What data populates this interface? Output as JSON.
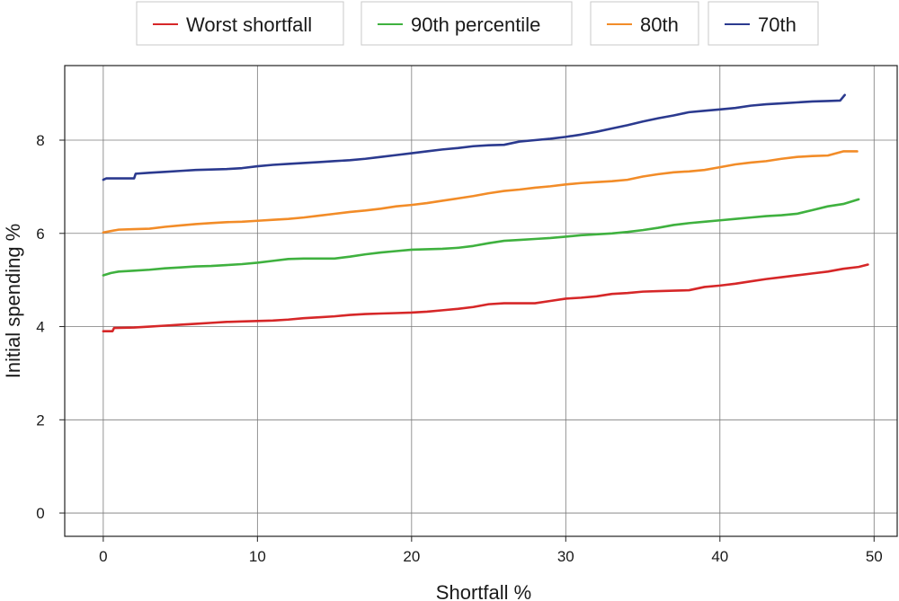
{
  "chart_data": {
    "type": "line",
    "title": "",
    "xlabel": "Shortfall %",
    "ylabel": "Initial spending %",
    "xlim": [
      -2.5,
      51.5
    ],
    "ylim": [
      -0.5,
      9.6
    ],
    "xticks": [
      0,
      10,
      20,
      30,
      40,
      50
    ],
    "yticks": [
      0,
      2,
      4,
      6,
      8
    ],
    "grid": true,
    "legend_position": "top",
    "series": [
      {
        "name": "Worst shortfall",
        "color": "#d62728",
        "x": [
          0,
          0.6,
          0.7,
          2,
          3,
          4,
          5,
          6,
          7,
          8,
          9,
          10,
          11,
          12,
          13,
          14,
          15,
          16,
          17,
          18,
          19,
          20,
          21,
          22,
          23,
          24,
          25,
          26,
          27,
          28,
          29,
          30,
          31,
          32,
          33,
          34,
          35,
          36,
          37,
          38,
          39,
          40,
          41,
          42,
          43,
          44,
          45,
          46,
          47,
          48,
          49,
          49.6
        ],
        "y": [
          3.9,
          3.9,
          3.97,
          3.98,
          4.0,
          4.02,
          4.04,
          4.06,
          4.08,
          4.1,
          4.11,
          4.12,
          4.13,
          4.15,
          4.18,
          4.2,
          4.22,
          4.25,
          4.27,
          4.28,
          4.29,
          4.3,
          4.32,
          4.35,
          4.38,
          4.42,
          4.48,
          4.5,
          4.5,
          4.5,
          4.55,
          4.6,
          4.62,
          4.65,
          4.7,
          4.72,
          4.75,
          4.76,
          4.77,
          4.78,
          4.85,
          4.88,
          4.92,
          4.97,
          5.02,
          5.06,
          5.1,
          5.14,
          5.18,
          5.24,
          5.28,
          5.33
        ]
      },
      {
        "name": "90th percentile",
        "color": "#3fb13f",
        "x": [
          0,
          0.5,
          1,
          2,
          3,
          4,
          5,
          6,
          7,
          8,
          9,
          10,
          11,
          12,
          13,
          14,
          15,
          16,
          17,
          18,
          19,
          20,
          21,
          22,
          23,
          24,
          25,
          26,
          27,
          28,
          29,
          30,
          31,
          32,
          33,
          34,
          35,
          36,
          37,
          38,
          39,
          40,
          41,
          42,
          43,
          44,
          45,
          46,
          47,
          48,
          49
        ],
        "y": [
          5.1,
          5.15,
          5.18,
          5.2,
          5.22,
          5.25,
          5.27,
          5.29,
          5.3,
          5.32,
          5.34,
          5.37,
          5.41,
          5.45,
          5.46,
          5.46,
          5.46,
          5.5,
          5.55,
          5.59,
          5.62,
          5.65,
          5.66,
          5.67,
          5.69,
          5.73,
          5.79,
          5.84,
          5.86,
          5.88,
          5.9,
          5.93,
          5.96,
          5.98,
          6.0,
          6.03,
          6.07,
          6.12,
          6.18,
          6.22,
          6.25,
          6.28,
          6.31,
          6.34,
          6.37,
          6.39,
          6.42,
          6.5,
          6.58,
          6.63,
          6.73
        ]
      },
      {
        "name": "80th",
        "color": "#f28c28",
        "x": [
          0,
          0.5,
          1,
          2,
          3,
          4,
          5,
          6,
          7,
          8,
          9,
          10,
          11,
          12,
          13,
          14,
          15,
          16,
          17,
          18,
          19,
          20,
          21,
          22,
          23,
          24,
          25,
          26,
          27,
          28,
          29,
          30,
          31,
          32,
          33,
          34,
          35,
          36,
          37,
          38,
          39,
          40,
          41,
          42,
          43,
          44,
          45,
          46,
          47,
          48,
          48.9
        ],
        "y": [
          6.02,
          6.05,
          6.08,
          6.09,
          6.1,
          6.14,
          6.17,
          6.2,
          6.22,
          6.24,
          6.25,
          6.27,
          6.29,
          6.31,
          6.34,
          6.38,
          6.42,
          6.46,
          6.49,
          6.53,
          6.58,
          6.61,
          6.65,
          6.7,
          6.75,
          6.8,
          6.86,
          6.91,
          6.94,
          6.98,
          7.01,
          7.05,
          7.08,
          7.1,
          7.12,
          7.15,
          7.22,
          7.27,
          7.31,
          7.33,
          7.36,
          7.42,
          7.48,
          7.52,
          7.55,
          7.6,
          7.64,
          7.66,
          7.67,
          7.76,
          7.76
        ]
      },
      {
        "name": "70th",
        "color": "#2b3a8f",
        "x": [
          0,
          0.2,
          2,
          2.1,
          3,
          4,
          5,
          6,
          7,
          8,
          9,
          10,
          11,
          12,
          13,
          14,
          15,
          16,
          17,
          18,
          19,
          20,
          21,
          22,
          23,
          24,
          25,
          26,
          27,
          28,
          29,
          30,
          31,
          32,
          33,
          34,
          35,
          36,
          37,
          38,
          39,
          40,
          41,
          42,
          43,
          44,
          45,
          46,
          47,
          47.8,
          48.1
        ],
        "y": [
          7.15,
          7.18,
          7.18,
          7.28,
          7.3,
          7.32,
          7.34,
          7.36,
          7.37,
          7.38,
          7.4,
          7.44,
          7.47,
          7.49,
          7.51,
          7.53,
          7.55,
          7.57,
          7.6,
          7.64,
          7.68,
          7.72,
          7.76,
          7.8,
          7.83,
          7.87,
          7.89,
          7.9,
          7.97,
          8.0,
          8.03,
          8.07,
          8.12,
          8.18,
          8.25,
          8.32,
          8.4,
          8.47,
          8.53,
          8.6,
          8.63,
          8.66,
          8.69,
          8.74,
          8.77,
          8.79,
          8.81,
          8.83,
          8.84,
          8.85,
          8.97
        ]
      }
    ]
  }
}
